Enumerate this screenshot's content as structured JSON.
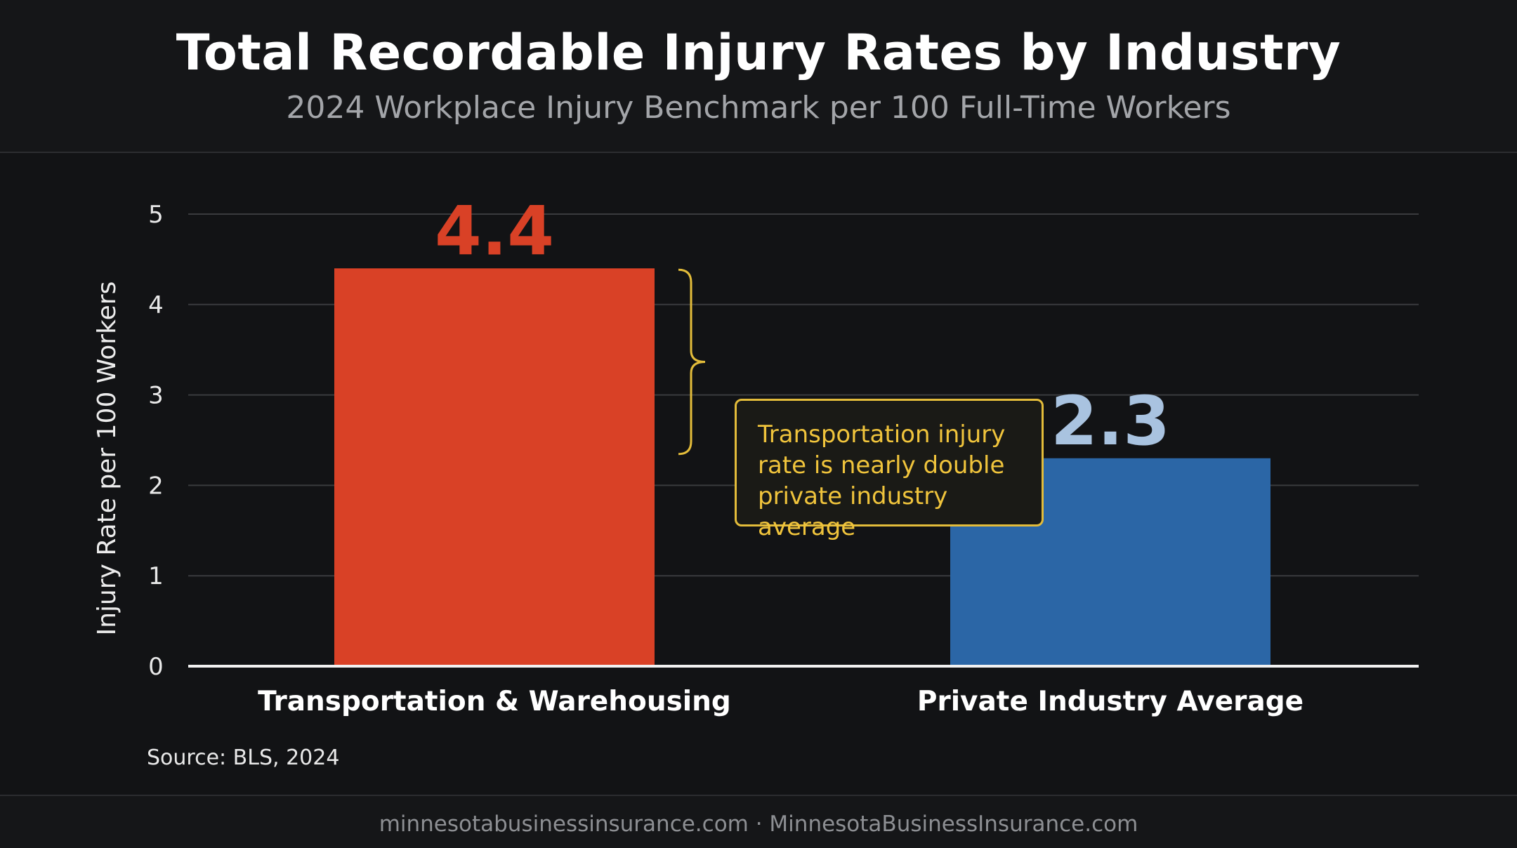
{
  "header": {
    "title": "Total Recordable Injury Rates by Industry",
    "subtitle": "2024 Workplace Injury Benchmark per 100 Full-Time Workers"
  },
  "chart_data": {
    "type": "bar",
    "title": "Total Recordable Injury Rates by Industry",
    "subtitle": "2024 Workplace Injury Benchmark per 100 Full-Time Workers",
    "categories": [
      "Transportation & Warehousing",
      "Private Industry Average"
    ],
    "values": [
      4.4,
      2.3
    ],
    "value_labels": [
      "4.4",
      "2.3"
    ],
    "colors": [
      "#d94126",
      "#2b66a6"
    ],
    "label_colors": [
      "#d94126",
      "#a9c3e0"
    ],
    "xlabel": "",
    "ylabel": "Injury Rate per 100 Workers",
    "ylim": [
      0,
      5
    ],
    "yticks": [
      "0",
      "1",
      "2",
      "3",
      "4",
      "5"
    ],
    "grid": true,
    "legend": "none",
    "annotation": "Transportation injury rate is nearly double private industry average"
  },
  "source": "Source: BLS, 2024",
  "footer": "minnesotabusinessinsurance.com · MinnesotaBusinessInsurance.com"
}
